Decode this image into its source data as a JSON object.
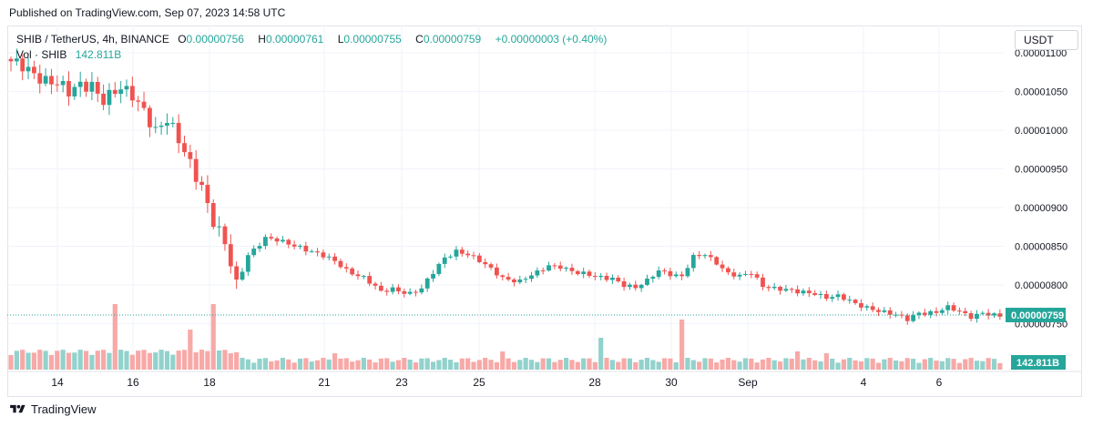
{
  "header": {
    "published": "Published on TradingView.com, Sep 07, 2023 14:58 UTC"
  },
  "legend": {
    "symbol": "SHIB / TetherUS, 4h, BINANCE",
    "o_label": "O",
    "o_value": "0.00000756",
    "h_label": "H",
    "h_value": "0.00000761",
    "l_label": "L",
    "l_value": "0.00000755",
    "c_label": "C",
    "c_value": "0.00000759",
    "change": "+0.00000003 (+0.40%)",
    "vol_label": "Vol · SHIB",
    "vol_value": "142.811B"
  },
  "currency_button": "USDT",
  "footer": {
    "brand": "TradingView"
  },
  "colors": {
    "up": "#26a69a",
    "down": "#ef5350",
    "up_vol": "#92d2cc",
    "down_vol": "#f7a9a7",
    "grid": "#f0f3fa",
    "text": "#131722"
  },
  "chart_data": {
    "type": "candlestick",
    "price_axis_ticks": [
      "0.00001100",
      "0.00001050",
      "0.00001000",
      "0.00000950",
      "0.00000900",
      "0.00000850",
      "0.00000800",
      "0.00000750"
    ],
    "time_axis_labels": [
      "14",
      "16",
      "18",
      "21",
      "23",
      "25",
      "28",
      "30",
      "Sep",
      "4",
      "6"
    ],
    "current_price_label": "0.00000759",
    "current_volume_label": "142.811B",
    "anchors": [
      [
        0,
        1.085
      ],
      [
        4,
        1.075
      ],
      [
        8,
        1.06
      ],
      [
        10,
        1.045
      ],
      [
        12,
        1.058
      ],
      [
        14,
        1.062
      ],
      [
        16,
        1.04
      ],
      [
        19,
        1.05
      ],
      [
        21,
        1.045
      ],
      [
        23,
        1.03
      ],
      [
        25,
        1.0
      ],
      [
        27,
        1.01
      ],
      [
        29,
        0.985
      ],
      [
        31,
        0.96
      ],
      [
        33,
        0.93
      ],
      [
        35,
        0.88
      ],
      [
        37,
        0.85
      ],
      [
        39,
        0.8
      ],
      [
        41,
        0.84
      ],
      [
        44,
        0.86
      ],
      [
        47,
        0.855
      ],
      [
        50,
        0.85
      ],
      [
        53,
        0.84
      ],
      [
        56,
        0.83
      ],
      [
        58,
        0.82
      ],
      [
        61,
        0.81
      ],
      [
        64,
        0.79
      ],
      [
        66,
        0.795
      ],
      [
        69,
        0.79
      ],
      [
        71,
        0.795
      ],
      [
        73,
        0.815
      ],
      [
        75,
        0.835
      ],
      [
        77,
        0.845
      ],
      [
        79,
        0.84
      ],
      [
        81,
        0.83
      ],
      [
        83,
        0.82
      ],
      [
        85,
        0.81
      ],
      [
        88,
        0.805
      ],
      [
        91,
        0.815
      ],
      [
        93,
        0.825
      ],
      [
        95,
        0.825
      ],
      [
        98,
        0.815
      ],
      [
        101,
        0.81
      ],
      [
        104,
        0.81
      ],
      [
        106,
        0.8
      ],
      [
        108,
        0.795
      ],
      [
        110,
        0.805
      ],
      [
        112,
        0.82
      ],
      [
        114,
        0.815
      ],
      [
        116,
        0.81
      ],
      [
        118,
        0.835
      ],
      [
        120,
        0.84
      ],
      [
        122,
        0.83
      ],
      [
        124,
        0.815
      ],
      [
        126,
        0.81
      ],
      [
        128,
        0.815
      ],
      [
        130,
        0.8
      ],
      [
        133,
        0.795
      ],
      [
        136,
        0.79
      ],
      [
        139,
        0.79
      ],
      [
        141,
        0.785
      ],
      [
        143,
        0.785
      ],
      [
        146,
        0.775
      ],
      [
        149,
        0.77
      ],
      [
        151,
        0.765
      ],
      [
        153,
        0.76
      ],
      [
        155,
        0.755
      ],
      [
        157,
        0.765
      ],
      [
        160,
        0.765
      ],
      [
        162,
        0.77
      ],
      [
        164,
        0.765
      ],
      [
        166,
        0.76
      ],
      [
        168,
        0.765
      ],
      [
        170,
        0.76
      ],
      [
        171,
        0.759
      ]
    ],
    "vol_spikes": {
      "18": 72,
      "31": 44,
      "35": 72,
      "56": 18,
      "85": 20,
      "102": 35,
      "116": 55,
      "136": 20,
      "141": 18
    }
  }
}
